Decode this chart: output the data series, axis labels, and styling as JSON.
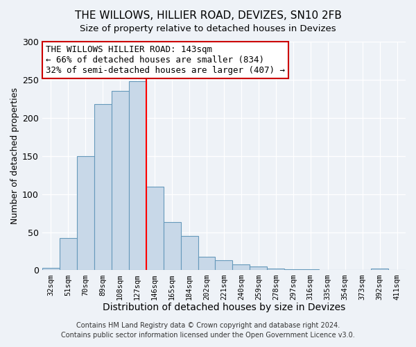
{
  "title": "THE WILLOWS, HILLIER ROAD, DEVIZES, SN10 2FB",
  "subtitle": "Size of property relative to detached houses in Devizes",
  "xlabel": "Distribution of detached houses by size in Devizes",
  "ylabel": "Number of detached properties",
  "bar_labels": [
    "32sqm",
    "51sqm",
    "70sqm",
    "89sqm",
    "108sqm",
    "127sqm",
    "146sqm",
    "165sqm",
    "184sqm",
    "202sqm",
    "221sqm",
    "240sqm",
    "259sqm",
    "278sqm",
    "297sqm",
    "316sqm",
    "335sqm",
    "354sqm",
    "373sqm",
    "392sqm",
    "411sqm"
  ],
  "bar_values": [
    3,
    42,
    150,
    218,
    235,
    248,
    110,
    63,
    45,
    18,
    13,
    8,
    5,
    2,
    1,
    1,
    0,
    0,
    0,
    2,
    0
  ],
  "bar_color": "#c8d8e8",
  "bar_edge_color": "#6699bb",
  "vline_x_index": 6,
  "vline_color": "red",
  "annotation_title": "THE WILLOWS HILLIER ROAD: 143sqm",
  "annotation_line1": "← 66% of detached houses are smaller (834)",
  "annotation_line2": "32% of semi-detached houses are larger (407) →",
  "annotation_box_color": "white",
  "annotation_box_edge": "#cc0000",
  "ylim": [
    0,
    300
  ],
  "yticks": [
    0,
    50,
    100,
    150,
    200,
    250,
    300
  ],
  "footer1": "Contains HM Land Registry data © Crown copyright and database right 2024.",
  "footer2": "Contains public sector information licensed under the Open Government Licence v3.0.",
  "background_color": "#eef2f7",
  "title_fontsize": 11,
  "xlabel_fontsize": 10,
  "ylabel_fontsize": 9,
  "annotation_fontsize": 9,
  "footer_fontsize": 7
}
